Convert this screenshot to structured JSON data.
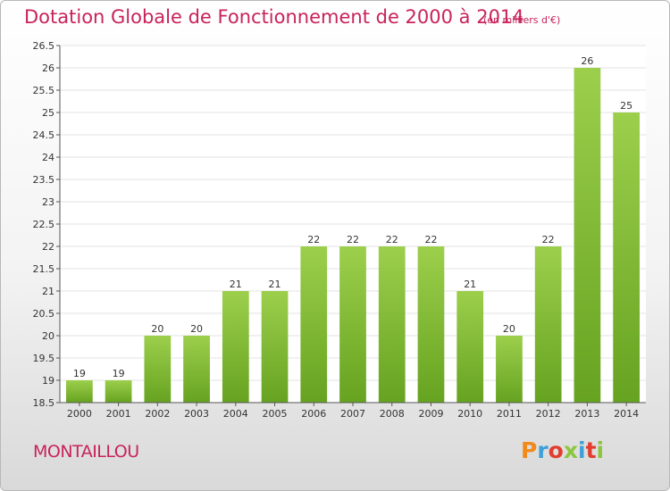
{
  "header": {
    "title": "Dotation Globale de Fonctionnement de 2000 à 2014",
    "unit": "(en milliers d'€)"
  },
  "footer": {
    "town": "MONTAILLOU",
    "logo": "Proxiti",
    "logo_colors": [
      "#f08a1c",
      "#3ea0d8",
      "#e23d2e",
      "#8cc63f",
      "#3ea0d8",
      "#e23d2e",
      "#8cc63f"
    ]
  },
  "colors": {
    "accent": "#c8235a",
    "bar_light": "#9ccf4c",
    "bar_dark": "#66a320"
  },
  "chart_data": {
    "type": "bar",
    "title": "Dotation Globale de Fonctionnement de 2000 à 2014",
    "subtitle": "(en milliers d'€)",
    "categories": [
      "2000",
      "2001",
      "2002",
      "2003",
      "2004",
      "2005",
      "2006",
      "2007",
      "2008",
      "2009",
      "2010",
      "2011",
      "2012",
      "2013",
      "2014"
    ],
    "values": [
      19,
      19,
      20,
      20,
      21,
      21,
      22,
      22,
      22,
      22,
      21,
      20,
      22,
      26,
      25
    ],
    "value_labels": [
      "19",
      "19",
      "20",
      "20",
      "21",
      "21",
      "22",
      "22",
      "22",
      "22",
      "21",
      "20",
      "22",
      "26",
      "25"
    ],
    "yticks": [
      "18.5",
      "19",
      "19.5",
      "20",
      "20.5",
      "21",
      "21.5",
      "22",
      "22.5",
      "23",
      "23.5",
      "24",
      "24.5",
      "25",
      "25.5",
      "26",
      "26.5"
    ],
    "ylim": [
      18.5,
      26.5
    ],
    "grid": true,
    "xlabel": "",
    "ylabel": ""
  }
}
